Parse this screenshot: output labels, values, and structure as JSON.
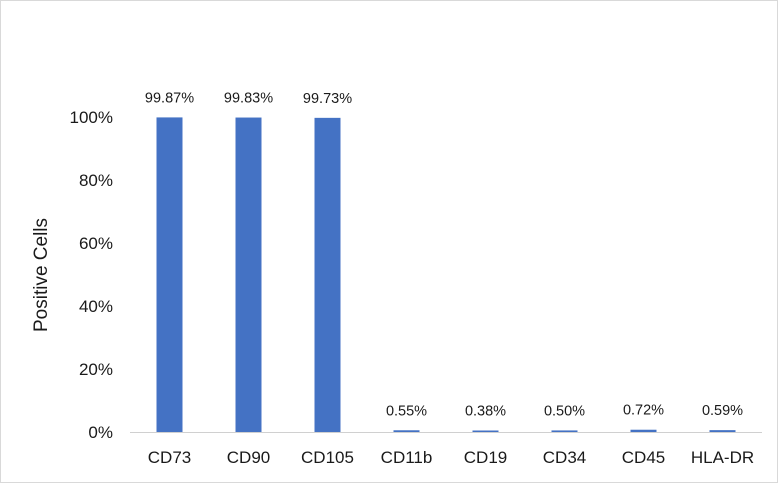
{
  "chart_data": {
    "type": "bar",
    "title": "",
    "xlabel": "",
    "ylabel": "Positive Cells",
    "ylim": [
      0,
      100
    ],
    "yticks": [
      "0%",
      "20%",
      "40%",
      "60%",
      "80%",
      "100%"
    ],
    "ytick_values": [
      0,
      20,
      40,
      60,
      80,
      100
    ],
    "categories": [
      "CD73",
      "CD90",
      "CD105",
      "CD11b",
      "CD19",
      "CD34",
      "CD45",
      "HLA-DR"
    ],
    "values": [
      99.87,
      99.83,
      99.73,
      0.55,
      0.38,
      0.5,
      0.72,
      0.59
    ],
    "data_labels": [
      "99.87%",
      "99.83%",
      "99.73%",
      "0.55%",
      "0.38%",
      "0.50%",
      "0.72%",
      "0.59%"
    ],
    "grid": false,
    "legend": "none",
    "bar_color": "#4472C4"
  }
}
